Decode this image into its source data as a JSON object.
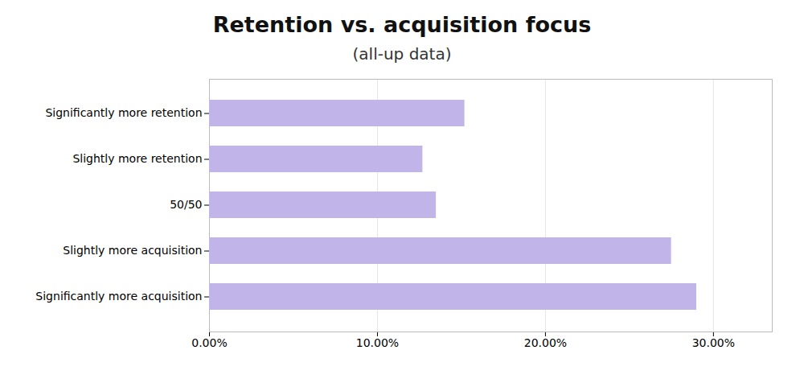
{
  "chart_data": {
    "type": "bar",
    "orientation": "horizontal",
    "title": "Retention vs. acquisition focus",
    "subtitle": "(all-up data)",
    "categories": [
      "Significantly more acquisition",
      "Slightly more acquisition",
      "50/50",
      "Slightly more retention",
      "Significantly more retention"
    ],
    "values": [
      0.29,
      0.275,
      0.135,
      0.127,
      0.152
    ],
    "color": "#c0b4e8",
    "xlim": [
      0,
      0.335
    ],
    "xticks": [
      {
        "value": 0.0,
        "label": "0.00%"
      },
      {
        "value": 0.1,
        "label": "10.00%"
      },
      {
        "value": 0.2,
        "label": "20.00%"
      },
      {
        "value": 0.3,
        "label": "30.00%"
      }
    ],
    "grid": true
  }
}
